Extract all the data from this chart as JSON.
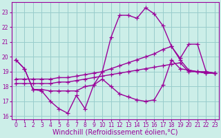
{
  "bg_color": "#cceee8",
  "grid_color": "#99cccc",
  "line_color": "#990099",
  "marker": "+",
  "markersize": 5,
  "linewidth": 1.0,
  "xlabel": "Windchill (Refroidissement éolien,°C)",
  "xlabel_fontsize": 7.0,
  "xlim": [
    -0.5,
    23.5
  ],
  "ylim": [
    15.8,
    23.7
  ],
  "yticks": [
    16,
    17,
    18,
    19,
    20,
    21,
    22,
    23
  ],
  "xticks": [
    0,
    1,
    2,
    3,
    4,
    5,
    6,
    7,
    8,
    9,
    10,
    11,
    12,
    13,
    14,
    15,
    16,
    17,
    18,
    19,
    20,
    21,
    22,
    23
  ],
  "tick_fontsize": 5.5,
  "series": [
    {
      "x": [
        0,
        1,
        2,
        3,
        4,
        5,
        6,
        7,
        8,
        9,
        10,
        11,
        12,
        13,
        14,
        15,
        16,
        17,
        18,
        19,
        20,
        21,
        22,
        23
      ],
      "y": [
        19.8,
        19.2,
        17.8,
        17.7,
        17.0,
        16.5,
        16.2,
        17.4,
        16.5,
        18.1,
        18.5,
        18.0,
        17.5,
        17.3,
        17.1,
        17.0,
        17.1,
        18.1,
        19.8,
        19.2,
        19.1,
        19.0,
        19.0,
        18.9
      ]
    },
    {
      "x": [
        0,
        1,
        2,
        3,
        4,
        5,
        6,
        7,
        8,
        9,
        10,
        11,
        12,
        13,
        14,
        15,
        16,
        17,
        18,
        19,
        20,
        21,
        22,
        23
      ],
      "y": [
        19.8,
        19.2,
        17.8,
        17.8,
        17.7,
        17.7,
        17.7,
        17.7,
        18.0,
        18.1,
        19.0,
        21.3,
        22.8,
        22.8,
        22.6,
        23.3,
        22.9,
        22.1,
        20.7,
        19.8,
        19.1,
        19.0,
        18.9,
        18.9
      ]
    },
    {
      "x": [
        0,
        1,
        2,
        3,
        4,
        5,
        6,
        7,
        8,
        9,
        10,
        11,
        12,
        13,
        14,
        15,
        16,
        17,
        18,
        19,
        20,
        21,
        22,
        23
      ],
      "y": [
        18.5,
        18.5,
        18.5,
        18.5,
        18.5,
        18.6,
        18.6,
        18.7,
        18.8,
        18.9,
        19.0,
        19.2,
        19.4,
        19.6,
        19.8,
        20.0,
        20.2,
        20.5,
        20.7,
        19.9,
        20.85,
        20.85,
        19.0,
        18.9
      ]
    },
    {
      "x": [
        0,
        1,
        2,
        3,
        4,
        5,
        6,
        7,
        8,
        9,
        10,
        11,
        12,
        13,
        14,
        15,
        16,
        17,
        18,
        19,
        20,
        21,
        22,
        23
      ],
      "y": [
        18.2,
        18.2,
        18.2,
        18.2,
        18.2,
        18.3,
        18.3,
        18.4,
        18.5,
        18.6,
        18.7,
        18.8,
        18.9,
        19.0,
        19.1,
        19.2,
        19.3,
        19.4,
        19.5,
        19.6,
        19.0,
        19.0,
        18.9,
        18.9
      ]
    }
  ]
}
